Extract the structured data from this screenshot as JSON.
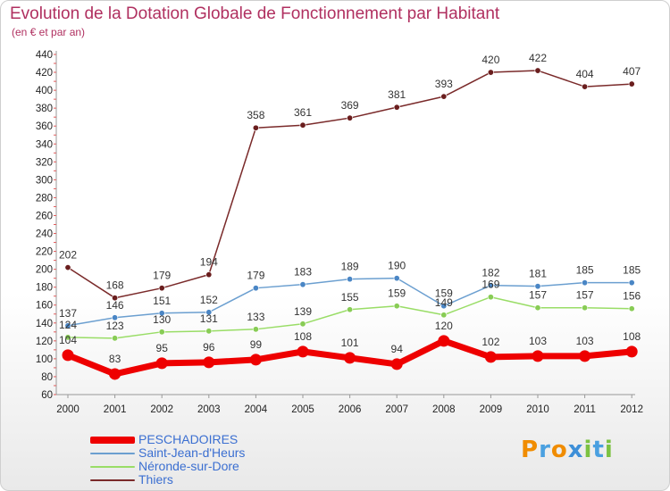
{
  "chart_data": {
    "type": "line",
    "title": "Evolution de la Dotation Globale de Fonctionnement par Habitant",
    "subtitle": "(en € et par an)",
    "xlabel": "",
    "ylabel": "",
    "categories": [
      "2000",
      "2001",
      "2002",
      "2003",
      "2004",
      "2005",
      "2006",
      "2007",
      "2008",
      "2009",
      "2010",
      "2011",
      "2012"
    ],
    "ylim": [
      60,
      440
    ],
    "yticks": [
      60,
      80,
      100,
      120,
      140,
      160,
      180,
      200,
      220,
      240,
      260,
      280,
      300,
      320,
      340,
      360,
      380,
      400,
      420,
      440
    ],
    "grid": false,
    "legend_position": "bottom-left",
    "series": [
      {
        "name": "PESCHADOIRES",
        "color": "#ee0000",
        "values": [
          104,
          83,
          95,
          96,
          99,
          108,
          101,
          94,
          120,
          102,
          103,
          103,
          108
        ]
      },
      {
        "name": "Saint-Jean-d'Heurs",
        "color": "#6b9fd0",
        "values": [
          137,
          146,
          151,
          152,
          179,
          183,
          189,
          190,
          159,
          182,
          181,
          185,
          185
        ]
      },
      {
        "name": "Néronde-sur-Dore",
        "color": "#99dd66",
        "values": [
          124,
          123,
          130,
          131,
          133,
          139,
          155,
          159,
          149,
          169,
          157,
          157,
          156
        ]
      },
      {
        "name": "Thiers",
        "color": "#7a2a2a",
        "values": [
          202,
          168,
          179,
          194,
          358,
          361,
          369,
          381,
          393,
          420,
          422,
          404,
          407
        ]
      }
    ]
  },
  "logo": {
    "letters": [
      "P",
      "r",
      "o",
      "x",
      "i",
      "t",
      "i"
    ],
    "colors": [
      "#f08c00",
      "#4aa0e0",
      "#f08c00",
      "#3d8fd8",
      "#7cc242",
      "#4aa0e0",
      "#7cc242"
    ]
  }
}
